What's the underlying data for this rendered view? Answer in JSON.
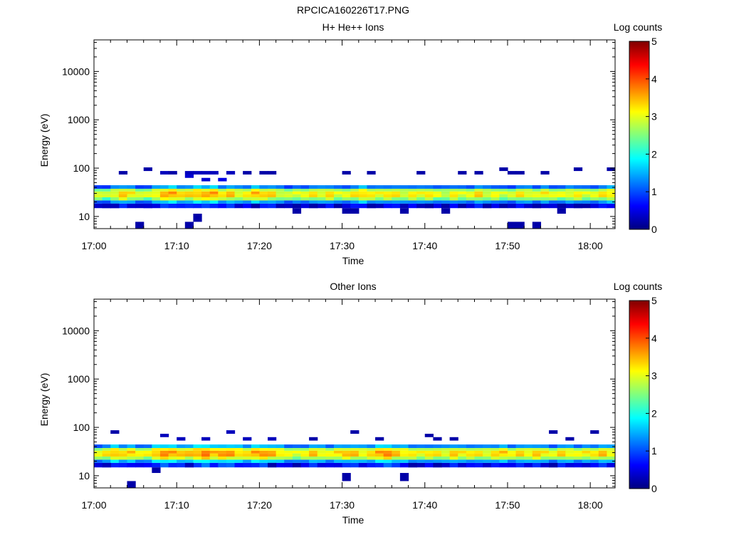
{
  "figure": {
    "title": "RPCICA160226T17.PNG"
  },
  "colorscale": [
    "#00007f",
    "#0000ff",
    "#007fff",
    "#00ffff",
    "#7fff7f",
    "#ffff00",
    "#ff7f00",
    "#ff0000",
    "#7f0000"
  ],
  "chart_data": [
    {
      "type": "heatmap",
      "title": "H+ He++ Ions",
      "xlabel": "Time",
      "ylabel": "Energy (eV)",
      "x_ticks": [
        "17:00",
        "17:10",
        "17:20",
        "17:30",
        "17:40",
        "17:50",
        "18:00"
      ],
      "xlim": [
        "17:00",
        "18:03"
      ],
      "y_scale": "log",
      "y_ticks": [
        "10",
        "100",
        "1000",
        "10000"
      ],
      "ylim": [
        5.6,
        45000
      ],
      "colorbar": {
        "label": "Log counts",
        "ticks": [
          "0",
          "1",
          "2",
          "3",
          "4",
          "5"
        ],
        "range": [
          0,
          5
        ]
      },
      "energy_bins_eV": [
        6,
        10,
        13,
        17,
        20,
        23,
        27,
        31,
        35,
        40,
        49,
        58,
        68,
        80,
        95
      ],
      "time_bin_minutes": 1,
      "band_profile": {
        "description": "per-minute log counts, bins 20-40 eV",
        "core_levels": [
          2.8,
          2.6,
          2.9,
          3.2,
          3.0,
          2.8,
          2.7,
          3.0,
          3.3,
          3.4,
          3.2,
          3.1,
          3.3,
          3.3,
          3.4,
          3.1,
          3.2,
          2.9,
          3.0,
          3.3,
          3.2,
          3.1,
          2.8,
          2.7,
          2.8,
          2.9,
          3.0,
          2.9,
          3.1,
          2.8,
          2.9,
          3.0,
          3.2,
          3.0,
          2.9,
          3.1,
          3.0,
          2.8,
          3.0,
          2.9,
          3.1,
          2.8,
          2.7,
          3.0,
          2.8,
          2.9,
          3.1,
          2.8,
          2.9,
          2.7,
          2.8,
          3.0,
          2.9,
          2.8,
          3.0,
          2.9,
          2.8,
          2.9,
          3.0,
          2.8,
          2.9,
          3.0,
          3.1
        ]
      },
      "sparse_points": [
        {
          "t": 3,
          "e": 80,
          "v": 0.2
        },
        {
          "t": 6,
          "e": 88,
          "v": 0.2
        },
        {
          "t": 8,
          "e": 78,
          "v": 0.3
        },
        {
          "t": 9,
          "e": 76,
          "v": 0.2
        },
        {
          "t": 11,
          "e": 78,
          "v": 0.3
        },
        {
          "t": 11,
          "e": 63,
          "v": 0.4
        },
        {
          "t": 12,
          "e": 80,
          "v": 0.3
        },
        {
          "t": 13,
          "e": 79,
          "v": 0.3
        },
        {
          "t": 13,
          "e": 58,
          "v": 0.4
        },
        {
          "t": 14,
          "e": 80,
          "v": 0.3
        },
        {
          "t": 15,
          "e": 55,
          "v": 0.5
        },
        {
          "t": 16,
          "e": 79,
          "v": 0.3
        },
        {
          "t": 18,
          "e": 80,
          "v": 0.2
        },
        {
          "t": 20,
          "e": 80,
          "v": 0.2
        },
        {
          "t": 21,
          "e": 86,
          "v": 0.2
        },
        {
          "t": 30,
          "e": 79,
          "v": 0.2
        },
        {
          "t": 33,
          "e": 80,
          "v": 0.2
        },
        {
          "t": 39,
          "e": 82,
          "v": 0.2
        },
        {
          "t": 44,
          "e": 80,
          "v": 0.2
        },
        {
          "t": 46,
          "e": 79,
          "v": 0.2
        },
        {
          "t": 49,
          "e": 90,
          "v": 0.2
        },
        {
          "t": 50,
          "e": 86,
          "v": 0.2
        },
        {
          "t": 51,
          "e": 80,
          "v": 0.2
        },
        {
          "t": 54,
          "e": 80,
          "v": 0.2
        },
        {
          "t": 58,
          "e": 91,
          "v": 0.2
        },
        {
          "t": 62,
          "e": 88,
          "v": 0.2
        },
        {
          "t": 1,
          "e": 17,
          "v": 0.3
        },
        {
          "t": 2,
          "e": 17,
          "v": 0.3
        },
        {
          "t": 6,
          "e": 16,
          "v": 0.4
        },
        {
          "t": 12,
          "e": 11,
          "v": 0.2
        },
        {
          "t": 19,
          "e": 17,
          "v": 0.2
        },
        {
          "t": 24,
          "e": 13,
          "v": 0.2
        },
        {
          "t": 26,
          "e": 16,
          "v": 0.2
        },
        {
          "t": 30,
          "e": 12,
          "v": 0.2
        },
        {
          "t": 31,
          "e": 12,
          "v": 0.2
        },
        {
          "t": 33,
          "e": 16,
          "v": 0.2
        },
        {
          "t": 37,
          "e": 13,
          "v": 0.2
        },
        {
          "t": 40,
          "e": 16,
          "v": 0.2
        },
        {
          "t": 42,
          "e": 14,
          "v": 0.2
        },
        {
          "t": 47,
          "e": 15,
          "v": 0.2
        },
        {
          "t": 50,
          "e": 7,
          "v": 0.2
        },
        {
          "t": 51,
          "e": 7,
          "v": 0.2
        },
        {
          "t": 53,
          "e": 17,
          "v": 0.2
        },
        {
          "t": 56,
          "e": 13,
          "v": 0.2
        },
        {
          "t": 5,
          "e": 6,
          "v": 0.2
        },
        {
          "t": 11,
          "e": 6,
          "v": 0.2
        },
        {
          "t": 53,
          "e": 6,
          "v": 0.2
        },
        {
          "t": 56,
          "e": 18,
          "v": 0.2
        },
        {
          "t": 58,
          "e": 17,
          "v": 0.2
        }
      ]
    },
    {
      "type": "heatmap",
      "title": "Other Ions",
      "xlabel": "Time",
      "ylabel": "Energy (eV)",
      "x_ticks": [
        "17:00",
        "17:10",
        "17:20",
        "17:30",
        "17:40",
        "17:50",
        "18:00"
      ],
      "xlim": [
        "17:00",
        "18:03"
      ],
      "y_scale": "log",
      "y_ticks": [
        "10",
        "100",
        "1000",
        "10000"
      ],
      "ylim": [
        5.6,
        45000
      ],
      "colorbar": {
        "label": "Log counts",
        "ticks": [
          "0",
          "1",
          "2",
          "3",
          "4",
          "5"
        ],
        "range": [
          0,
          5
        ]
      },
      "energy_bins_eV": [
        6,
        10,
        13,
        17,
        20,
        23,
        27,
        31,
        35,
        40,
        49,
        58,
        68,
        80,
        95
      ],
      "time_bin_minutes": 1,
      "band_profile": {
        "description": "per-minute log counts, bins 20-40 eV",
        "core_levels": [
          2.9,
          3.0,
          3.3,
          3.1,
          3.2,
          3.0,
          2.9,
          3.3,
          3.5,
          3.4,
          3.3,
          3.2,
          3.4,
          3.6,
          3.3,
          3.5,
          3.4,
          3.2,
          3.1,
          3.4,
          3.5,
          3.3,
          3.1,
          2.9,
          2.8,
          3.0,
          3.2,
          3.0,
          2.9,
          3.1,
          3.3,
          3.2,
          3.0,
          3.1,
          3.4,
          3.6,
          3.2,
          3.1,
          3.0,
          2.9,
          3.1,
          3.0,
          2.9,
          3.2,
          3.0,
          3.1,
          3.0,
          2.9,
          3.1,
          3.2,
          3.0,
          3.1,
          3.0,
          3.2,
          3.0,
          2.9,
          3.1,
          3.0,
          2.9,
          3.0,
          3.1,
          3.2,
          3.0
        ]
      },
      "sparse_points": [
        {
          "t": 2,
          "e": 85,
          "v": 0.2
        },
        {
          "t": 8,
          "e": 65,
          "v": 0.3
        },
        {
          "t": 10,
          "e": 60,
          "v": 0.3
        },
        {
          "t": 13,
          "e": 58,
          "v": 0.3
        },
        {
          "t": 16,
          "e": 80,
          "v": 0.3
        },
        {
          "t": 18,
          "e": 57,
          "v": 0.3
        },
        {
          "t": 21,
          "e": 56,
          "v": 0.3
        },
        {
          "t": 26,
          "e": 62,
          "v": 0.2
        },
        {
          "t": 31,
          "e": 78,
          "v": 0.2
        },
        {
          "t": 34,
          "e": 60,
          "v": 0.2
        },
        {
          "t": 40,
          "e": 72,
          "v": 0.2
        },
        {
          "t": 41,
          "e": 62,
          "v": 0.2
        },
        {
          "t": 43,
          "e": 58,
          "v": 0.2
        },
        {
          "t": 55,
          "e": 79,
          "v": 0.2
        },
        {
          "t": 57,
          "e": 60,
          "v": 0.2
        },
        {
          "t": 60,
          "e": 82,
          "v": 0.2
        },
        {
          "t": 63,
          "e": 67,
          "v": 0.2
        },
        {
          "t": 1,
          "e": 17,
          "v": 0.3
        },
        {
          "t": 4,
          "e": 6,
          "v": 0.2
        },
        {
          "t": 7,
          "e": 12,
          "v": 0.2
        },
        {
          "t": 11,
          "e": 17,
          "v": 0.3
        },
        {
          "t": 21,
          "e": 17,
          "v": 0.2
        },
        {
          "t": 30,
          "e": 8,
          "v": 0.2
        },
        {
          "t": 37,
          "e": 11,
          "v": 0.2
        },
        {
          "t": 38,
          "e": 17,
          "v": 0.2
        },
        {
          "t": 41,
          "e": 18,
          "v": 0.2
        },
        {
          "t": 55,
          "e": 17,
          "v": 0.2
        }
      ]
    }
  ]
}
